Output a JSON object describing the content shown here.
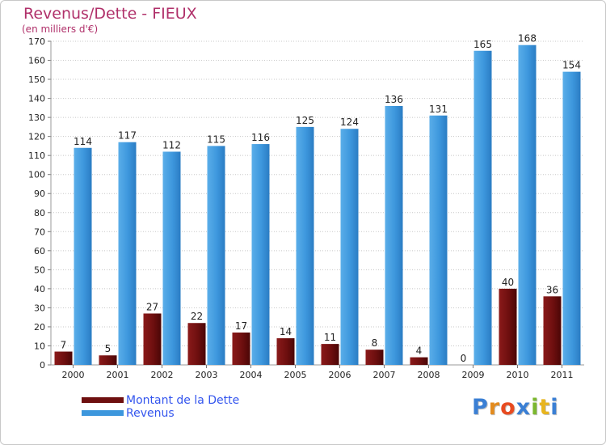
{
  "colors": {
    "title": "#b0306a",
    "dette": "#6e0f0f",
    "revenus": "#3d97dd",
    "legend_text": "#3355ee",
    "grid": "#c8c8c8"
  },
  "chart_data": {
    "type": "bar",
    "title": "Revenus/Dette - FIEUX",
    "subtitle": "(en milliers d'€)",
    "xlabel": "",
    "ylabel": "",
    "ylim": [
      0,
      170
    ],
    "yticks": [
      0,
      10,
      20,
      30,
      40,
      50,
      60,
      70,
      80,
      90,
      100,
      110,
      120,
      130,
      140,
      150,
      160,
      170
    ],
    "categories": [
      "2000",
      "2001",
      "2002",
      "2003",
      "2004",
      "2005",
      "2006",
      "2007",
      "2008",
      "2009",
      "2010",
      "2011"
    ],
    "series": [
      {
        "name": "Montant de la Dette",
        "values": [
          7,
          5,
          27,
          22,
          17,
          14,
          11,
          8,
          4,
          0,
          40,
          36
        ]
      },
      {
        "name": "Revenus",
        "values": [
          114,
          117,
          112,
          115,
          116,
          125,
          124,
          136,
          131,
          165,
          168,
          154
        ]
      }
    ],
    "legend": "bottom-left"
  },
  "logo": {
    "letters": [
      "P",
      "r",
      "o",
      "x",
      "i",
      "t",
      "i"
    ],
    "colors": [
      "#3a7fd4",
      "#e38b1e",
      "#e84b21",
      "#3a7fd4",
      "#7cb82f",
      "#e8b51e",
      "#3a7fd4"
    ]
  }
}
